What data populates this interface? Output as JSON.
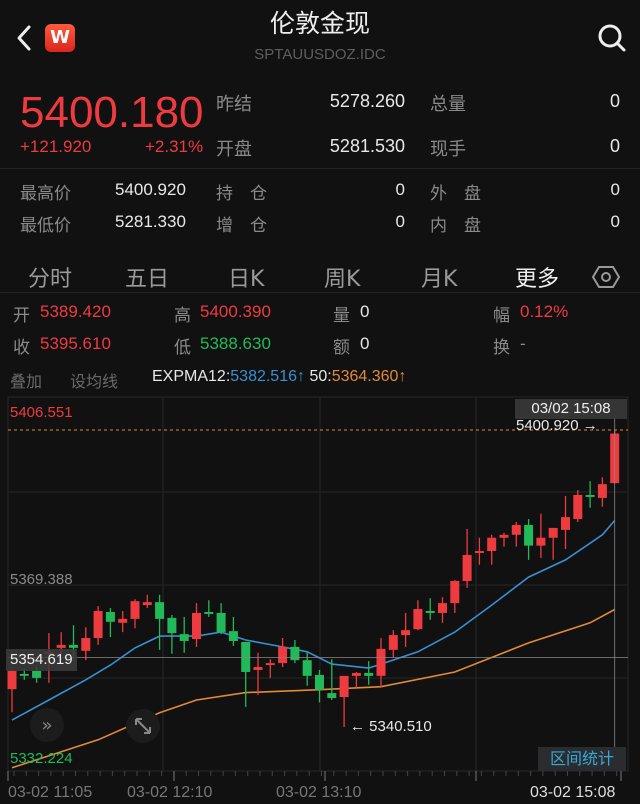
{
  "header": {
    "title": "伦敦金现",
    "symbol": "SPTAUUSDOZ.IDC",
    "logo_text": "W",
    "back_icon": "chevron-left-icon",
    "search_icon": "search-icon"
  },
  "quote": {
    "price": "5400.180",
    "change": "+121.920",
    "change_pct": "+2.31%",
    "fields": [
      {
        "label": "昨结",
        "value": "5278.260"
      },
      {
        "label": "总量",
        "value": "0"
      },
      {
        "label": "开盘",
        "value": "5281.530"
      },
      {
        "label": "现手",
        "value": "0"
      },
      {
        "label": "最高价",
        "value": "5400.920"
      },
      {
        "label": "持　仓",
        "value": "0"
      },
      {
        "label": "外　盘",
        "value": "0"
      },
      {
        "label": "最低价",
        "value": "5281.330"
      },
      {
        "label": "增　仓",
        "value": "0"
      },
      {
        "label": "内　盘",
        "value": "0"
      }
    ]
  },
  "tabs": [
    {
      "label": "分时"
    },
    {
      "label": "五日"
    },
    {
      "label": "日K"
    },
    {
      "label": "周K"
    },
    {
      "label": "月K"
    },
    {
      "label": "更多",
      "active": true
    }
  ],
  "settings_icon": "hexagon-settings-icon",
  "candle_info": {
    "open_label": "开",
    "open": "5389.420",
    "high_label": "高",
    "high": "5400.390",
    "volume_label": "量",
    "volume": "0",
    "amp_label": "幅",
    "amp": "0.12%",
    "close_label": "收",
    "close": "5395.610",
    "low_label": "低",
    "low": "5388.630",
    "amount_label": "额",
    "amount": "0",
    "turnover_label": "换",
    "turnover": "-"
  },
  "indicator_bar": {
    "overlay": "叠加",
    "set_ma": "设均线",
    "expma_label": "EXPMA12:",
    "expma12": "5382.516↑",
    "expma50_label": " 50:",
    "expma50": "5364.360↑"
  },
  "colors": {
    "up": "#ee3b40",
    "down": "#21b95a",
    "expma12": "#3a8fd0",
    "expma50": "#e08a3a",
    "background": "#111112"
  },
  "chart_data": {
    "type": "candlestick",
    "ylim": [
      5332.224,
      5406.551
    ],
    "y_labels": [
      "5406.551",
      "5369.388",
      "5354.619",
      "5332.224"
    ],
    "x_labels": [
      "03-02 11:05",
      "03-02 12:10",
      "03-02 13:10",
      "03-02 15:08"
    ],
    "crosshair": {
      "time": "03/02 15:08",
      "price": "5354.619"
    },
    "high_marker": "5400.920 →",
    "low_marker": "← 5340.510",
    "candles": [
      [
        5348.2,
        5352.1,
        5343.5,
        5351.9
      ],
      [
        5351.3,
        5352.3,
        5350.1,
        5350.9
      ],
      [
        5351.9,
        5352.7,
        5349.5,
        5350.5
      ],
      [
        5355.4,
        5359.6,
        5349.5,
        5355.8
      ],
      [
        5356.6,
        5359.8,
        5354.1,
        5357.2
      ],
      [
        5357.2,
        5361.2,
        5354.1,
        5356.6
      ],
      [
        5356.0,
        5360.8,
        5354.1,
        5358.6
      ],
      [
        5358.6,
        5365.1,
        5357.2,
        5364.1
      ],
      [
        5363.9,
        5364.7,
        5358.8,
        5361.9
      ],
      [
        5361.7,
        5364.1,
        5359.8,
        5362.5
      ],
      [
        5362.5,
        5366.5,
        5360.6,
        5366.1
      ],
      [
        5365.3,
        5367.4,
        5364.7,
        5365.9
      ],
      [
        5365.9,
        5367.4,
        5356.2,
        5362.5
      ],
      [
        5362.7,
        5363.3,
        5355.4,
        5359.6
      ],
      [
        5359.4,
        5362.9,
        5355.6,
        5358.0
      ],
      [
        5358.4,
        5365.7,
        5356.8,
        5363.7
      ],
      [
        5363.9,
        5366.3,
        5362.9,
        5363.5
      ],
      [
        5363.7,
        5365.7,
        5359.4,
        5359.8
      ],
      [
        5360.0,
        5362.9,
        5357.0,
        5358.0
      ],
      [
        5357.8,
        5357.8,
        5344.6,
        5351.7
      ],
      [
        5352.1,
        5355.6,
        5347.0,
        5352.7
      ],
      [
        5353.1,
        5354.3,
        5350.5,
        5353.5
      ],
      [
        5353.5,
        5358.6,
        5352.7,
        5356.8
      ],
      [
        5356.8,
        5358.2,
        5353.5,
        5354.1
      ],
      [
        5354.1,
        5355.8,
        5348.9,
        5350.9
      ],
      [
        5351.1,
        5352.1,
        5345.5,
        5348.1
      ],
      [
        5347.4,
        5354.3,
        5346.0,
        5346.4
      ],
      [
        5346.6,
        5350.9,
        5340.5,
        5350.9
      ],
      [
        5350.9,
        5351.7,
        5348.5,
        5351.5
      ],
      [
        5351.5,
        5353.9,
        5349.1,
        5350.9
      ],
      [
        5350.9,
        5358.6,
        5348.7,
        5356.4
      ],
      [
        5356.2,
        5360.2,
        5354.7,
        5359.2
      ],
      [
        5359.2,
        5363.7,
        5356.8,
        5360.2
      ],
      [
        5360.4,
        5366.3,
        5360.2,
        5364.5
      ],
      [
        5364.1,
        5366.7,
        5362.3,
        5363.7
      ],
      [
        5363.7,
        5366.9,
        5361.7,
        5365.7
      ],
      [
        5365.7,
        5370.4,
        5363.7,
        5370.2
      ],
      [
        5370.2,
        5380.8,
        5368.8,
        5375.5
      ],
      [
        5375.9,
        5379.0,
        5373.5,
        5376.3
      ],
      [
        5376.3,
        5379.6,
        5373.5,
        5379.0
      ],
      [
        5379.0,
        5380.0,
        5377.2,
        5379.6
      ],
      [
        5379.6,
        5382.2,
        5377.2,
        5381.6
      ],
      [
        5381.6,
        5382.8,
        5374.5,
        5377.4
      ],
      [
        5377.4,
        5383.9,
        5374.9,
        5379.0
      ],
      [
        5379.0,
        5381.0,
        5374.5,
        5381.0
      ],
      [
        5380.6,
        5387.5,
        5376.7,
        5383.2
      ],
      [
        5382.8,
        5388.7,
        5382.2,
        5387.7
      ],
      [
        5387.7,
        5390.5,
        5385.1,
        5387.3
      ],
      [
        5387.1,
        5391.3,
        5385.3,
        5389.9
      ],
      [
        5390.1,
        5400.9,
        5390.1,
        5400.2
      ]
    ],
    "candle_format": [
      "open",
      "high",
      "low",
      "close"
    ],
    "series": [
      {
        "name": "EXPMA12",
        "points": [
          [
            1,
            5341.9
          ],
          [
            4,
            5346.0
          ],
          [
            7,
            5350.1
          ],
          [
            9,
            5353.1
          ],
          [
            11,
            5356.6
          ],
          [
            13,
            5359.0
          ],
          [
            16,
            5359.0
          ],
          [
            18,
            5359.8
          ],
          [
            20,
            5358.2
          ],
          [
            23,
            5356.8
          ],
          [
            25,
            5355.8
          ],
          [
            27,
            5353.3
          ],
          [
            30,
            5352.5
          ],
          [
            31,
            5353.3
          ],
          [
            34,
            5355.8
          ],
          [
            37,
            5359.8
          ],
          [
            40,
            5365.3
          ],
          [
            43,
            5371.0
          ],
          [
            46,
            5374.5
          ],
          [
            48,
            5377.9
          ],
          [
            49,
            5379.6
          ],
          [
            50,
            5382.5
          ]
        ]
      },
      {
        "name": "50",
        "points": [
          [
            1,
            5332.2
          ],
          [
            8,
            5337.9
          ],
          [
            13,
            5343.4
          ],
          [
            16,
            5346.0
          ],
          [
            20,
            5347.5
          ],
          [
            26,
            5348.1
          ],
          [
            31,
            5348.7
          ],
          [
            37,
            5351.7
          ],
          [
            43,
            5357.6
          ],
          [
            48,
            5361.7
          ],
          [
            50,
            5364.4
          ]
        ]
      }
    ],
    "grid": true
  },
  "chart_buttons": {
    "collapse_icon": "double-chevron-right-icon",
    "expand_icon": "expand-arrows-icon",
    "range_stats": "区间统计"
  }
}
